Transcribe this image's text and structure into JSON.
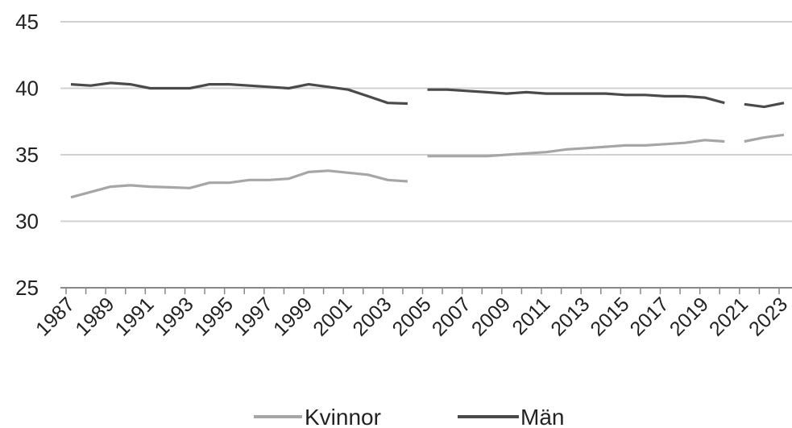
{
  "chart_data": {
    "type": "line",
    "title": "",
    "xlabel": "",
    "ylabel": "",
    "ylim": [
      25,
      45
    ],
    "yticks": [
      25,
      30,
      35,
      40,
      45
    ],
    "xticks": [
      "1987",
      "1989",
      "1991",
      "1993",
      "1995",
      "1997",
      "1999",
      "2001",
      "2003",
      "2005",
      "2007",
      "2009",
      "2011",
      "2013",
      "2015",
      "2017",
      "2019",
      "2021",
      "2023"
    ],
    "x": [
      1987,
      1988,
      1989,
      1990,
      1991,
      1992,
      1993,
      1994,
      1995,
      1996,
      1997,
      1998,
      1999,
      2000,
      2001,
      2002,
      2003,
      2004,
      2005,
      2006,
      2007,
      2008,
      2009,
      2010,
      2011,
      2012,
      2013,
      2014,
      2015,
      2016,
      2017,
      2018,
      2019,
      2020,
      2021,
      2022,
      2023
    ],
    "grid": true,
    "legend_position": "bottom",
    "series": [
      {
        "name": "Kvinnor",
        "color": "#a6a6a6",
        "values": [
          31.8,
          32.2,
          32.6,
          32.7,
          32.6,
          32.55,
          32.5,
          32.9,
          32.9,
          33.1,
          33.1,
          33.2,
          33.7,
          33.8,
          33.65,
          33.5,
          33.1,
          33.0,
          34.9,
          34.9,
          34.9,
          34.9,
          35.0,
          35.1,
          35.2,
          35.4,
          35.5,
          35.6,
          35.7,
          35.7,
          35.8,
          35.9,
          36.1,
          36.0,
          36.0,
          36.3,
          36.5
        ],
        "breaks_after": [
          2004,
          2020
        ]
      },
      {
        "name": "Män",
        "color": "#4a4a4a",
        "values": [
          40.3,
          40.2,
          40.4,
          40.3,
          40.0,
          40.0,
          40.0,
          40.3,
          40.3,
          40.2,
          40.1,
          40.0,
          40.3,
          40.1,
          39.9,
          39.4,
          38.9,
          38.85,
          39.9,
          39.9,
          39.8,
          39.7,
          39.6,
          39.7,
          39.6,
          39.6,
          39.6,
          39.6,
          39.5,
          39.5,
          39.4,
          39.4,
          39.3,
          38.9,
          38.8,
          38.6,
          38.9
        ],
        "breaks_after": [
          2004,
          2020
        ]
      }
    ],
    "axis_color": "#888888",
    "grid_color": "#d0d0d0"
  }
}
